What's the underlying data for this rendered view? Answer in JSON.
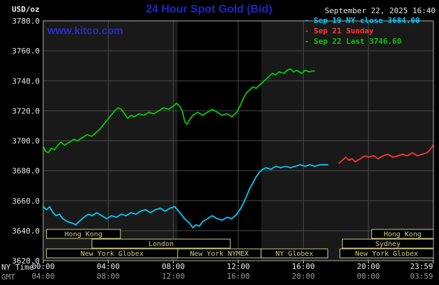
{
  "header": {
    "units_label": "USD/oz",
    "title": "24 Hour Spot Gold (Bid)",
    "datetime": "September 22, 2025 16:40",
    "watermark": "www.kitco.com",
    "legend": [
      {
        "label": "- Sep 19 NY close 3684.00",
        "color": "#00ccff"
      },
      {
        "label": "- Sep 21 Sunday",
        "color": "#ff3333"
      },
      {
        "label": "- Sep 22 Last 3746.60",
        "color": "#00cc00"
      }
    ]
  },
  "colors": {
    "background": "#000000",
    "plot_background": "#191919",
    "nymex_band": "#000000",
    "grid": "#4a4a4a",
    "plot_border": "#b0b0b0",
    "title_blue": "#2222cc",
    "watermark_blue": "#2a2ace",
    "timestamp_text": "#e6e6da",
    "axis_text": "#e8e8e8",
    "gmt_text": "#999999",
    "tick_mark": "#d8d8d8",
    "session": "#cccc88"
  },
  "chart_data": {
    "type": "line",
    "title": "24 Hour Spot Gold (Bid)",
    "ylabel": "USD/oz",
    "ylim": [
      3620,
      3780
    ],
    "xlim": [
      0,
      24
    ],
    "grid": true,
    "legend_position": "top-right",
    "ny_close": 3684.0,
    "last": 3746.6,
    "yticks": [
      "3780.0",
      "3760.0",
      "3740.0",
      "3720.0",
      "3700.0",
      "3680.0",
      "3660.0",
      "3640.0",
      "3620.0"
    ],
    "x_axis": {
      "ny_label": "NY Time",
      "gmt_label": "GMT",
      "tick_hours": [
        0,
        4,
        8,
        12,
        16,
        20,
        23.983
      ],
      "ny_ticks": [
        "00:00",
        "04:00",
        "08:00",
        "12:00",
        "16:00",
        "20:00",
        "23:59"
      ],
      "gmt_ticks": [
        "04:00",
        "08:00",
        "12:00",
        "16:00",
        "20:00",
        "00:00",
        "03:59"
      ]
    },
    "band_hours": [
      8.27,
      13.4
    ],
    "series": [
      {
        "name": "Sep 19 NY close",
        "color": "#00ccff",
        "points": [
          [
            0,
            3656
          ],
          [
            0.2,
            3654
          ],
          [
            0.4,
            3656
          ],
          [
            0.6,
            3652
          ],
          [
            0.8,
            3650
          ],
          [
            1,
            3651
          ],
          [
            1.2,
            3648
          ],
          [
            1.5,
            3646
          ],
          [
            1.8,
            3645
          ],
          [
            2,
            3644
          ],
          [
            2.2,
            3646
          ],
          [
            2.5,
            3649
          ],
          [
            2.8,
            3651
          ],
          [
            3,
            3650
          ],
          [
            3.3,
            3652
          ],
          [
            3.6,
            3650
          ],
          [
            3.9,
            3648
          ],
          [
            4.2,
            3650
          ],
          [
            4.5,
            3649
          ],
          [
            4.8,
            3651
          ],
          [
            5.1,
            3650
          ],
          [
            5.4,
            3652
          ],
          [
            5.7,
            3651
          ],
          [
            6,
            3653
          ],
          [
            6.3,
            3654
          ],
          [
            6.6,
            3652
          ],
          [
            6.9,
            3654
          ],
          [
            7.2,
            3655
          ],
          [
            7.5,
            3653
          ],
          [
            7.8,
            3655
          ],
          [
            8.1,
            3656
          ],
          [
            8.4,
            3652
          ],
          [
            8.7,
            3648
          ],
          [
            9,
            3645
          ],
          [
            9.2,
            3642
          ],
          [
            9.4,
            3644
          ],
          [
            9.6,
            3643
          ],
          [
            9.8,
            3646
          ],
          [
            10.1,
            3648
          ],
          [
            10.4,
            3650
          ],
          [
            10.7,
            3648
          ],
          [
            11,
            3647
          ],
          [
            11.3,
            3649
          ],
          [
            11.6,
            3648
          ],
          [
            11.9,
            3651
          ],
          [
            12.1,
            3654
          ],
          [
            12.3,
            3658
          ],
          [
            12.5,
            3663
          ],
          [
            12.7,
            3668
          ],
          [
            12.9,
            3672
          ],
          [
            13.1,
            3676
          ],
          [
            13.3,
            3679
          ],
          [
            13.5,
            3681
          ],
          [
            13.7,
            3682
          ],
          [
            14,
            3681
          ],
          [
            14.3,
            3683
          ],
          [
            14.6,
            3682
          ],
          [
            14.9,
            3683
          ],
          [
            15.2,
            3682
          ],
          [
            15.5,
            3683
          ],
          [
            15.8,
            3684
          ],
          [
            16.1,
            3683
          ],
          [
            16.4,
            3684
          ],
          [
            16.7,
            3683
          ],
          [
            17,
            3684
          ],
          [
            17.5,
            3684
          ]
        ]
      },
      {
        "name": "Sep 21 Sunday",
        "color": "#ff3333",
        "points": [
          [
            18.2,
            3685
          ],
          [
            18.4,
            3687
          ],
          [
            18.6,
            3689
          ],
          [
            18.8,
            3687
          ],
          [
            19,
            3688
          ],
          [
            19.2,
            3686
          ],
          [
            19.5,
            3688
          ],
          [
            19.8,
            3690
          ],
          [
            20,
            3689
          ],
          [
            20.3,
            3690
          ],
          [
            20.6,
            3688
          ],
          [
            20.9,
            3690
          ],
          [
            21.2,
            3691
          ],
          [
            21.5,
            3689
          ],
          [
            21.8,
            3690
          ],
          [
            22.1,
            3691
          ],
          [
            22.4,
            3690
          ],
          [
            22.7,
            3692
          ],
          [
            23,
            3690
          ],
          [
            23.3,
            3691
          ],
          [
            23.6,
            3692
          ],
          [
            23.8,
            3694
          ],
          [
            23.98,
            3697
          ]
        ]
      },
      {
        "name": "Sep 22 Last",
        "color": "#00cc00",
        "points": [
          [
            0,
            3696
          ],
          [
            0.15,
            3693
          ],
          [
            0.3,
            3692
          ],
          [
            0.5,
            3695
          ],
          [
            0.7,
            3694
          ],
          [
            0.9,
            3697
          ],
          [
            1.1,
            3699
          ],
          [
            1.3,
            3697
          ],
          [
            1.6,
            3699
          ],
          [
            1.9,
            3701
          ],
          [
            2.1,
            3700
          ],
          [
            2.4,
            3702
          ],
          [
            2.7,
            3704
          ],
          [
            3,
            3703
          ],
          [
            3.2,
            3705
          ],
          [
            3.5,
            3708
          ],
          [
            3.8,
            3712
          ],
          [
            4.1,
            3716
          ],
          [
            4.4,
            3720
          ],
          [
            4.6,
            3722
          ],
          [
            4.8,
            3721
          ],
          [
            5,
            3718
          ],
          [
            5.2,
            3715
          ],
          [
            5.4,
            3717
          ],
          [
            5.6,
            3716
          ],
          [
            5.9,
            3718
          ],
          [
            6.2,
            3717
          ],
          [
            6.5,
            3719
          ],
          [
            6.8,
            3718
          ],
          [
            7.1,
            3720
          ],
          [
            7.4,
            3722
          ],
          [
            7.7,
            3721
          ],
          [
            8,
            3723
          ],
          [
            8.2,
            3725
          ],
          [
            8.4,
            3723
          ],
          [
            8.55,
            3720
          ],
          [
            8.7,
            3713
          ],
          [
            8.85,
            3711
          ],
          [
            9,
            3714
          ],
          [
            9.2,
            3717
          ],
          [
            9.5,
            3719
          ],
          [
            9.8,
            3717
          ],
          [
            10.1,
            3719
          ],
          [
            10.4,
            3721
          ],
          [
            10.7,
            3719
          ],
          [
            11,
            3717
          ],
          [
            11.3,
            3718
          ],
          [
            11.6,
            3716
          ],
          [
            11.9,
            3719
          ],
          [
            12.1,
            3723
          ],
          [
            12.3,
            3728
          ],
          [
            12.5,
            3732
          ],
          [
            12.7,
            3734
          ],
          [
            12.9,
            3736
          ],
          [
            13.1,
            3735
          ],
          [
            13.3,
            3737
          ],
          [
            13.6,
            3740
          ],
          [
            13.9,
            3743
          ],
          [
            14.1,
            3745
          ],
          [
            14.3,
            3744
          ],
          [
            14.5,
            3746
          ],
          [
            14.8,
            3745
          ],
          [
            15,
            3747
          ],
          [
            15.2,
            3748
          ],
          [
            15.4,
            3746
          ],
          [
            15.6,
            3747
          ],
          [
            15.9,
            3745
          ],
          [
            16.1,
            3747
          ],
          [
            16.35,
            3746
          ],
          [
            16.67,
            3746.6
          ]
        ]
      }
    ],
    "sessions": [
      {
        "row": 0,
        "start": 0.2,
        "end": 4.75,
        "label": "Hong Kong"
      },
      {
        "row": 0,
        "start": 20.2,
        "end": 24,
        "label": "Hong Kong"
      },
      {
        "row": 1,
        "start": 3.0,
        "end": 11.5,
        "label": "London"
      },
      {
        "row": 1,
        "start": 18.4,
        "end": 24,
        "label": "Sydney"
      },
      {
        "row": 2,
        "start": 0.2,
        "end": 8.27,
        "label": "New York Globex"
      },
      {
        "row": 2,
        "start": 8.27,
        "end": 13.4,
        "label": "New York NYMEX"
      },
      {
        "row": 2,
        "start": 13.4,
        "end": 17.5,
        "label": "NY Globex"
      },
      {
        "row": 2,
        "start": 18.25,
        "end": 24,
        "label": "New York Globex"
      }
    ]
  }
}
